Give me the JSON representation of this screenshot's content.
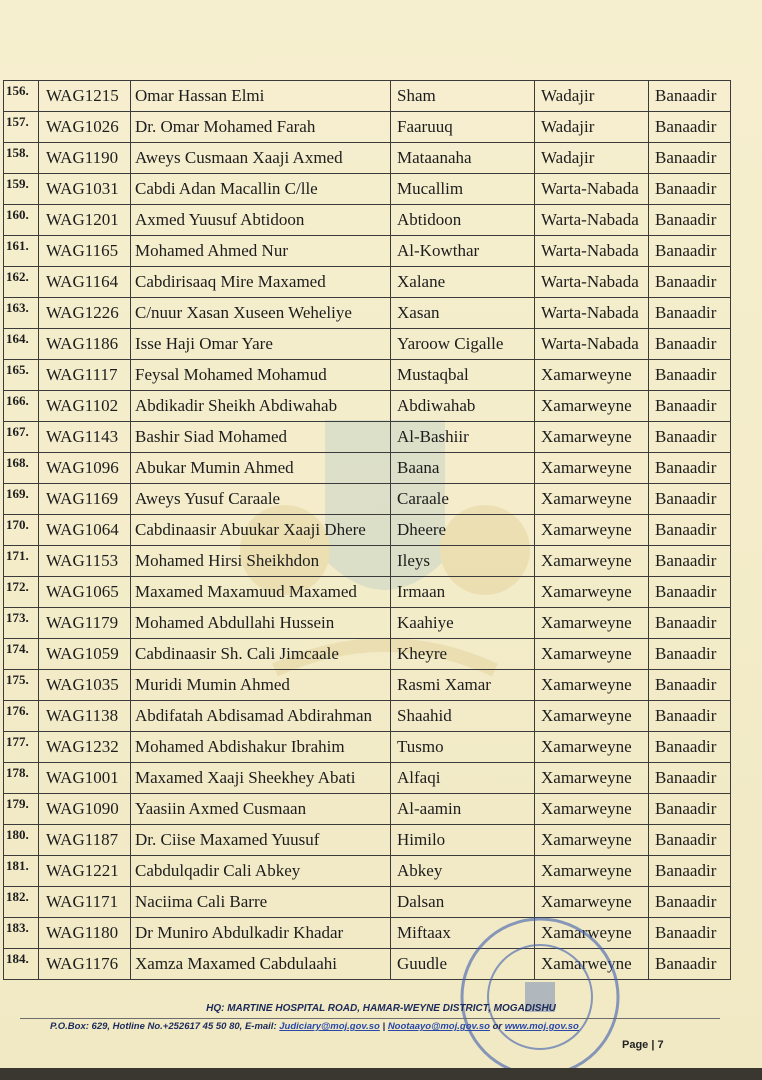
{
  "table": {
    "rows": [
      [
        "156.",
        "WAG1215",
        "Omar Hassan Elmi",
        "Sham",
        "Wadajir",
        "Banaadir"
      ],
      [
        "157.",
        "WAG1026",
        "Dr. Omar Mohamed Farah",
        "Faaruuq",
        "Wadajir",
        "Banaadir"
      ],
      [
        "158.",
        "WAG1190",
        "Aweys Cusmaan Xaaji Axmed",
        "Mataanaha",
        "Wadajir",
        "Banaadir"
      ],
      [
        "159.",
        "WAG1031",
        "Cabdi Adan Macallin C/lle",
        "Mucallim",
        "Warta-Nabada",
        "Banaadir"
      ],
      [
        "160.",
        "WAG1201",
        "Axmed Yuusuf Abtidoon",
        "Abtidoon",
        "Warta-Nabada",
        "Banaadir"
      ],
      [
        "161.",
        "WAG1165",
        "Mohamed Ahmed Nur",
        "Al-Kowthar",
        "Warta-Nabada",
        "Banaadir"
      ],
      [
        "162.",
        "WAG1164",
        "Cabdirisaaq Mire Maxamed",
        "Xalane",
        "Warta-Nabada",
        "Banaadir"
      ],
      [
        "163.",
        "WAG1226",
        "C/nuur Xasan Xuseen Weheliye",
        "Xasan",
        "Warta-Nabada",
        "Banaadir"
      ],
      [
        "164.",
        "WAG1186",
        "Isse Haji Omar Yare",
        "Yaroow Cigalle",
        "Warta-Nabada",
        "Banaadir"
      ],
      [
        "165.",
        "WAG1117",
        "Feysal Mohamed Mohamud",
        "Mustaqbal",
        "Xamarweyne",
        "Banaadir"
      ],
      [
        "166.",
        "WAG1102",
        "Abdikadir Sheikh Abdiwahab",
        "Abdiwahab",
        "Xamarweyne",
        "Banaadir"
      ],
      [
        "167.",
        "WAG1143",
        "Bashir Siad Mohamed",
        "Al-Bashiir",
        "Xamarweyne",
        "Banaadir"
      ],
      [
        "168.",
        "WAG1096",
        "Abukar Mumin Ahmed",
        "Baana",
        "Xamarweyne",
        "Banaadir"
      ],
      [
        "169.",
        "WAG1169",
        "Aweys Yusuf Caraale",
        "Caraale",
        "Xamarweyne",
        "Banaadir"
      ],
      [
        "170.",
        "WAG1064",
        "Cabdinaasir Abuukar Xaaji Dhere",
        "Dheere",
        "Xamarweyne",
        "Banaadir"
      ],
      [
        "171.",
        "WAG1153",
        "Mohamed Hirsi Sheikhdon",
        "Ileys",
        "Xamarweyne",
        "Banaadir"
      ],
      [
        "172.",
        "WAG1065",
        "Maxamed Maxamuud Maxamed",
        "Irmaan",
        "Xamarweyne",
        "Banaadir"
      ],
      [
        "173.",
        "WAG1179",
        "Mohamed Abdullahi Hussein",
        "Kaahiye",
        "Xamarweyne",
        "Banaadir"
      ],
      [
        "174.",
        "WAG1059",
        "Cabdinaasir Sh. Cali Jimcaale",
        "Kheyre",
        "Xamarweyne",
        "Banaadir"
      ],
      [
        "175.",
        "WAG1035",
        "Muridi Mumin Ahmed",
        "Rasmi Xamar",
        "Xamarweyne",
        "Banaadir"
      ],
      [
        "176.",
        "WAG1138",
        "Abdifatah Abdisamad Abdirahman",
        "Shaahid",
        "Xamarweyne",
        "Banaadir"
      ],
      [
        "177.",
        "WAG1232",
        "Mohamed Abdishakur Ibrahim",
        "Tusmo",
        "Xamarweyne",
        "Banaadir"
      ],
      [
        "178.",
        "WAG1001",
        "Maxamed Xaaji Sheekhey Abati",
        "Alfaqi",
        "Xamarweyne",
        "Banaadir"
      ],
      [
        "179.",
        "WAG1090",
        "Yaasiin Axmed Cusmaan",
        "Al-aamin",
        "Xamarweyne",
        "Banaadir"
      ],
      [
        "180.",
        "WAG1187",
        "Dr. Ciise Maxamed Yuusuf",
        "Himilo",
        "Xamarweyne",
        "Banaadir"
      ],
      [
        "181.",
        "WAG1221",
        "Cabdulqadir Cali Abkey",
        "Abkey",
        "Xamarweyne",
        "Banaadir"
      ],
      [
        "182.",
        "WAG1171",
        "Naciima Cali Barre",
        "Dalsan",
        "Xamarweyne",
        "Banaadir"
      ],
      [
        "183.",
        "WAG1180",
        "Dr Muniro Abdulkadir Khadar",
        "Miftaax",
        "Xamarweyne",
        "Banaadir"
      ],
      [
        "184.",
        "WAG1176",
        "Xamza Maxamed Cabdulaahi",
        "Guudle",
        "Xamarweyne",
        "Banaadir"
      ]
    ]
  },
  "footer": {
    "address": "HQ: MARTINE HOSPITAL ROAD, HAMAR-WEYNE DISTRICT, MOGADISHU",
    "contact_prefix": "P.O.Box: 629, Hotline No.+252617 45 50 80, E-mail: ",
    "email1": "Judiciary@moj.gov.so",
    "sep": " | ",
    "email2": "Nootaayo@moj.gov.so",
    "or": " or ",
    "website": "www.moj.gov.so",
    "page": "Page | 7"
  },
  "stamp": {
    "text": "JAMHUURIYADDA FEDERAALKA SOOMAALIYA · FEDERAL REPUBLIC OF SOMALIA · MINISTRY OF JUSTICE AND CONSTITUTION",
    "color": "#3f5fb0"
  },
  "colors": {
    "paper": "#f4edcb",
    "ink": "#1d1d1d",
    "footer_ink": "#1c2a5a"
  }
}
